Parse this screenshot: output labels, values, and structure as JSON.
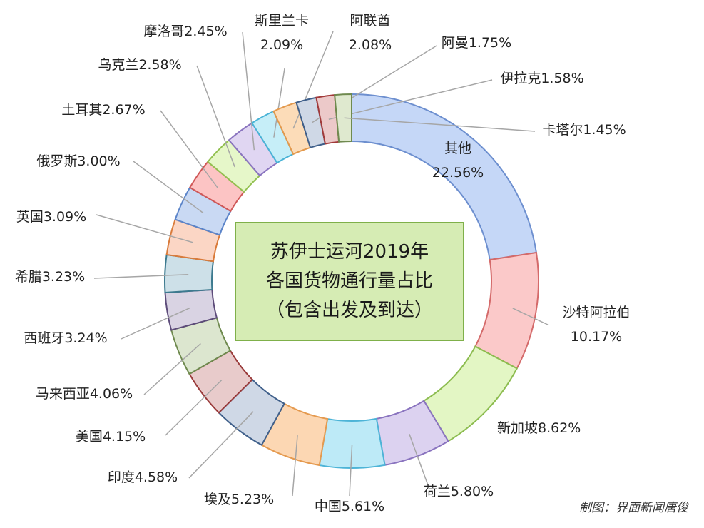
{
  "chart_data": {
    "type": "pie",
    "title": [
      "苏伊士运河2019年",
      "各国货物通行量占比",
      "（包含出发及到达）"
    ],
    "slices": [
      {
        "name": "其他",
        "value": 22.56,
        "label": [
          "其他",
          "22.56%"
        ],
        "color": "#c5d7f7",
        "stroke": "#6d8fcf"
      },
      {
        "name": "沙特阿拉伯",
        "value": 10.17,
        "label": [
          "沙特阿拉伯",
          "10.17%"
        ],
        "color": "#fbc9c9",
        "stroke": "#d46a6a"
      },
      {
        "name": "新加坡",
        "value": 8.62,
        "label": [
          "新加坡8.62%"
        ],
        "color": "#e3f6c4",
        "stroke": "#8cbc4f"
      },
      {
        "name": "荷兰",
        "value": 5.8,
        "label": [
          "荷兰5.80%"
        ],
        "color": "#dcd2f0",
        "stroke": "#8a74bf"
      },
      {
        "name": "中国",
        "value": 5.61,
        "label": [
          "中国5.61%"
        ],
        "color": "#bdeaf7",
        "stroke": "#4db4d7"
      },
      {
        "name": "埃及",
        "value": 5.23,
        "label": [
          "埃及5.23%"
        ],
        "color": "#fcd7b3",
        "stroke": "#e59a4f"
      },
      {
        "name": "印度",
        "value": 4.58,
        "label": [
          "印度4.58%"
        ],
        "color": "#cfd8e6",
        "stroke": "#3f5f8a"
      },
      {
        "name": "美国",
        "value": 4.15,
        "label": [
          "美国4.15%"
        ],
        "color": "#e8cbcb",
        "stroke": "#9a3b3b"
      },
      {
        "name": "马来西亚",
        "value": 4.06,
        "label": [
          "马来西亚4.06%"
        ],
        "color": "#dce6cf",
        "stroke": "#6f8a4f"
      },
      {
        "name": "西班牙",
        "value": 3.24,
        "label": [
          "西班牙3.24%"
        ],
        "color": "#d9d3e3",
        "stroke": "#5d4c7a"
      },
      {
        "name": "希腊",
        "value": 3.23,
        "label": [
          "希腊3.23%"
        ],
        "color": "#cde0e8",
        "stroke": "#3d7a8f"
      },
      {
        "name": "英国",
        "value": 3.09,
        "label": [
          "英国3.09%"
        ],
        "color": "#fbd6c5",
        "stroke": "#d97b3b"
      },
      {
        "name": "俄罗斯",
        "value": 3.0,
        "label": [
          "俄罗斯3.00%"
        ],
        "color": "#c9d9f3",
        "stroke": "#5b84c9"
      },
      {
        "name": "土耳其",
        "value": 2.67,
        "label": [
          "土耳其2.67%"
        ],
        "color": "#fcc4c4",
        "stroke": "#d05858"
      },
      {
        "name": "乌克兰",
        "value": 2.58,
        "label": [
          "乌克兰2.58%"
        ],
        "color": "#e6f7c9",
        "stroke": "#92c050"
      },
      {
        "name": "摩洛哥",
        "value": 2.45,
        "label": [
          "摩洛哥2.45%"
        ],
        "color": "#e0d6f2",
        "stroke": "#8a74bf"
      },
      {
        "name": "斯里兰卡",
        "value": 2.09,
        "label": [
          "斯里兰卡",
          "2.09%"
        ],
        "color": "#c6eef8",
        "stroke": "#49b3d6"
      },
      {
        "name": "阿联酋",
        "value": 2.08,
        "label": [
          "阿联酋",
          "2.08%"
        ],
        "color": "#fcdcb8",
        "stroke": "#e3994d"
      },
      {
        "name": "阿曼",
        "value": 1.75,
        "label": [
          "阿曼1.75%"
        ],
        "color": "#cfd8e6",
        "stroke": "#3f5f8a"
      },
      {
        "name": "伊拉克",
        "value": 1.58,
        "label": [
          "伊拉克1.58%"
        ],
        "color": "#ecc9c9",
        "stroke": "#a13a3a"
      },
      {
        "name": "卡塔尔",
        "value": 1.45,
        "label": [
          "卡塔尔1.45%"
        ],
        "color": "#dfe9cf",
        "stroke": "#6f8a4f"
      }
    ]
  },
  "credit": "制图：界面新闻唐俊"
}
